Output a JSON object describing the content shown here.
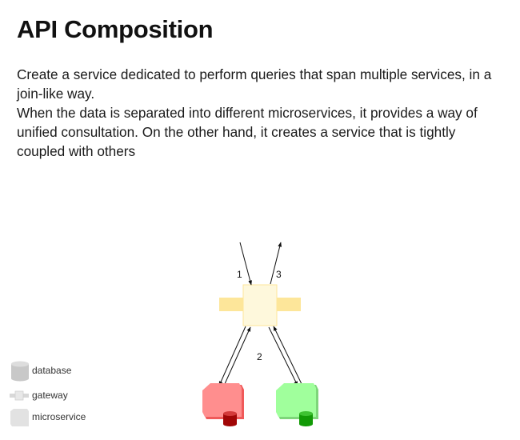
{
  "page": {
    "title": "API Composition",
    "paragraphs": [
      " Create a service dedicated to perform queries that span multiple services, in a join-like way.",
      " When the data is separated into different microservices, it provides a way of unified consultation. On the other hand, it creates a service that is tightly coupled with others"
    ]
  },
  "diagram": {
    "step_labels": [
      "1",
      "3",
      "2"
    ],
    "colors": {
      "gateway_fill": "#fef8dc",
      "gateway_handle": "#fde69a",
      "service_red": "#ff8e8e",
      "service_red_edge": "#f05a5a",
      "db_red": "#a10606",
      "service_green": "#a0ff9c",
      "service_green_edge": "#7ed67a",
      "db_green": "#129a06",
      "arrow": "#111111"
    }
  },
  "legend": {
    "items": [
      {
        "label": "database",
        "icon": "database-icon"
      },
      {
        "label": "gateway",
        "icon": "gateway-icon"
      },
      {
        "label": "microservice",
        "icon": "microservice-icon"
      }
    ]
  }
}
